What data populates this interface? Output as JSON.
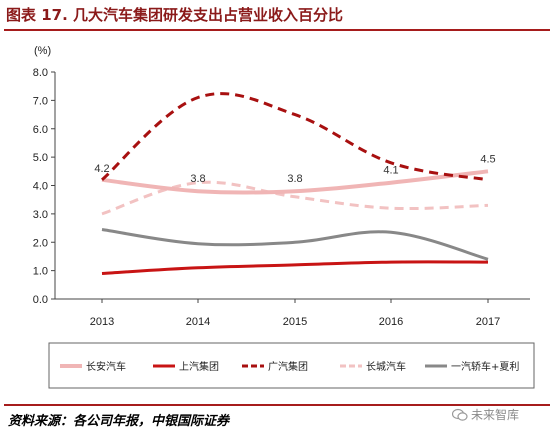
{
  "title": "图表 17. 几大汽车集团研发支出占营业收入百分比",
  "source": "资料来源：各公司年报，中银国际证券",
  "watermark": "未来智库",
  "chart_data": {
    "type": "line",
    "ylabel": "(%)",
    "ylim": [
      0,
      8
    ],
    "yticks": [
      "0.0",
      "1.0",
      "2.0",
      "3.0",
      "4.0",
      "5.0",
      "6.0",
      "7.0",
      "8.0"
    ],
    "x": [
      "2013",
      "2014",
      "2015",
      "2016",
      "2017"
    ],
    "legend_position": "bottom",
    "grid": false,
    "series": [
      {
        "name": "长安汽车",
        "values": [
          4.2,
          3.8,
          3.8,
          4.1,
          4.5
        ],
        "color": "#f0b5b5",
        "width": 4,
        "dash": ""
      },
      {
        "name": "上汽集团",
        "values": [
          0.9,
          1.1,
          1.2,
          1.3,
          1.3
        ],
        "color": "#c81414",
        "width": 3,
        "dash": ""
      },
      {
        "name": "广汽集团",
        "values": [
          4.2,
          7.1,
          6.5,
          4.8,
          4.2
        ],
        "color": "#a81010",
        "width": 3,
        "dash": "9,6"
      },
      {
        "name": "长城汽车",
        "values": [
          3.0,
          4.1,
          3.6,
          3.2,
          3.3
        ],
        "color": "#f2c2c2",
        "width": 3,
        "dash": "9,6"
      },
      {
        "name": "一汽轿车+夏利",
        "values": [
          2.45,
          1.95,
          2.0,
          2.35,
          1.4
        ],
        "color": "#888888",
        "width": 3,
        "dash": ""
      }
    ],
    "annotations": [
      {
        "text": "4.2",
        "x": "2013",
        "y": 4.2
      },
      {
        "text": "3.8",
        "x": "2014",
        "y": 3.8
      },
      {
        "text": "3.8",
        "x": "2015",
        "y": 3.8
      },
      {
        "text": "4.1",
        "x": "2016",
        "y": 4.1
      },
      {
        "text": "4.5",
        "x": "2017",
        "y": 4.5
      }
    ]
  }
}
